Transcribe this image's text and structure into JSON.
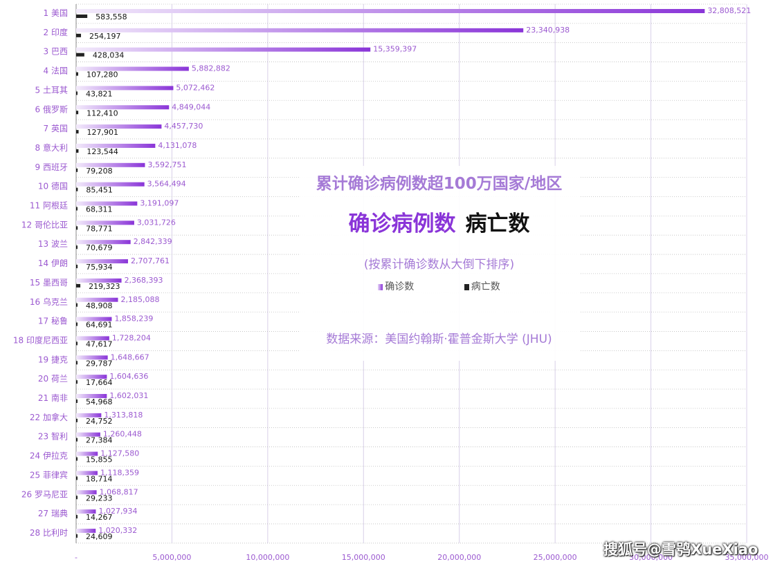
{
  "chart_data": {
    "type": "bar",
    "orientation": "horizontal",
    "categories": [
      "1 美国",
      "2 印度",
      "3 巴西",
      "4 法国",
      "5 土耳其",
      "6 俄罗斯",
      "7 英国",
      "8 意大利",
      "9 西班牙",
      "10 德国",
      "11 阿根廷",
      "12 哥伦比亚",
      "13 波兰",
      "14 伊朗",
      "15 墨西哥",
      "16 乌克兰",
      "17 秘鲁",
      "18 印度尼西亚",
      "19 捷克",
      "20 荷兰",
      "21 南非",
      "22 加拿大",
      "23 智利",
      "24 伊拉克",
      "25 菲律宾",
      "26 罗马尼亚",
      "27 瑞典",
      "28 比利时"
    ],
    "series": [
      {
        "name": "确诊数",
        "color": "#8a35d8",
        "values": [
          32808521,
          23340938,
          15359397,
          5882882,
          5072462,
          4849044,
          4457730,
          4131078,
          3592751,
          3564494,
          3191097,
          3031726,
          2842339,
          2707761,
          2368393,
          2185088,
          1858239,
          1728204,
          1648667,
          1604636,
          1602031,
          1313818,
          1260448,
          1127580,
          1118359,
          1068817,
          1027934,
          1020332
        ],
        "labels": [
          "32,808,521",
          "23,340,938",
          "15,359,397",
          "5,882,882",
          "5,072,462",
          "4,849,044",
          "4,457,730",
          "4,131,078",
          "3,592,751",
          "3,564,494",
          "3,191,097",
          "3,031,726",
          "2,842,339",
          "2,707,761",
          "2,368,393",
          "2,185,088",
          "1,858,239",
          "1,728,204",
          "1,648,667",
          "1,604,636",
          "1,602,031",
          "1,313,818",
          "1,260,448",
          "1,127,580",
          "1,118,359",
          "1,068,817",
          "1,027,934",
          "1,020,332"
        ]
      },
      {
        "name": "病亡数",
        "color": "#222222",
        "values": [
          583558,
          254197,
          428034,
          107280,
          43821,
          112410,
          127901,
          123544,
          79208,
          85451,
          68311,
          78771,
          70679,
          75934,
          219323,
          48908,
          64691,
          47617,
          29787,
          17664,
          54968,
          24752,
          27384,
          15855,
          18714,
          29233,
          14267,
          24609
        ],
        "labels": [
          "583,558",
          "254,197",
          "428,034",
          "107,280",
          "43,821",
          "112,410",
          "127,901",
          "123,544",
          "79,208",
          "85,451",
          "68,311",
          "78,771",
          "70,679",
          "75,934",
          "219,323",
          "48,908",
          "64,691",
          "47,617",
          "29,787",
          "17,664",
          "54,968",
          "24,752",
          "27,384",
          "15,855",
          "18,714",
          "29,233",
          "14,267",
          "24,609"
        ]
      }
    ],
    "xlim": [
      0,
      35000000
    ],
    "x_ticks": [
      0,
      5000000,
      10000000,
      15000000,
      20000000,
      25000000,
      30000000,
      35000000
    ],
    "x_tick_labels": [
      "-",
      "5,000,000",
      "10,000,000",
      "15,000,000",
      "20,000,000",
      "25,000,000",
      "30,000,000",
      "35,000,000"
    ],
    "title": "累计确诊病例数超100万国家/地区",
    "subtitle_confirmed": "确诊病例数",
    "subtitle_deaths": "病亡数",
    "note": "(按累计确诊数从大倒下排序)",
    "source": "数据来源：美国约翰斯·霍普金斯大学 (JHU)",
    "grid": true,
    "legend_position": "center",
    "label_color": "#9b59d0",
    "grid_color": "#d8cfe8"
  },
  "watermark": "搜狐号@雪鸮XueXiao"
}
